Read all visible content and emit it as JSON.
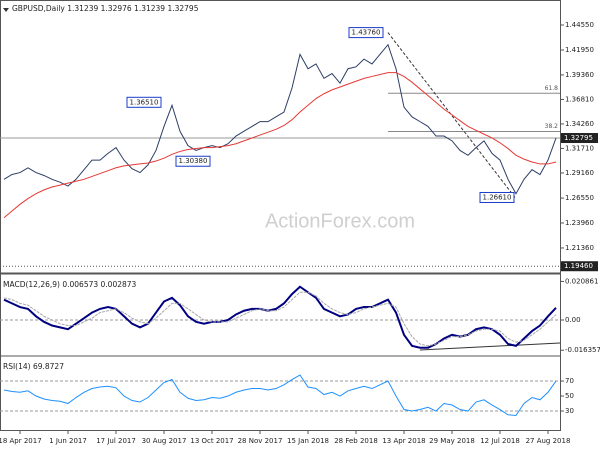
{
  "chart_data": [
    {
      "type": "line",
      "title": "GBPUSD,Daily  1.31239 1.32976 1.31239 1.32795",
      "categories": [
        null,
        null,
        "18 Apr 2017",
        null,
        null,
        null,
        null,
        null,
        "1 Jun 2017",
        null,
        null,
        null,
        null,
        null,
        "17 Jul 2017",
        null,
        null,
        null,
        null,
        null,
        "30 Aug 2017",
        null,
        null,
        null,
        null,
        null,
        "13 Oct 2017",
        null,
        null,
        null,
        null,
        null,
        "28 Nov 2017",
        null,
        null,
        null,
        null,
        null,
        "15 Jan 2018",
        null,
        null,
        null,
        null,
        null,
        "28 Feb 2018",
        null,
        null,
        null,
        null,
        null,
        "13 Apr 2018",
        null,
        null,
        null,
        null,
        null,
        "29 May 2018",
        null,
        null,
        null,
        null,
        null,
        "12 Jul 2018",
        null,
        null,
        null,
        null,
        null,
        "27 Aug 2018",
        null
      ],
      "series": [
        {
          "color": "#2c3e66",
          "values": [
            1.285,
            1.29,
            1.292,
            1.297,
            1.292,
            1.289,
            1.285,
            1.282,
            1.278,
            1.285,
            1.295,
            1.305,
            1.305,
            1.312,
            1.318,
            1.305,
            1.296,
            1.292,
            1.3,
            1.315,
            1.34,
            1.362,
            1.335,
            1.32,
            1.315,
            1.318,
            1.32,
            1.318,
            1.322,
            1.33,
            1.335,
            1.34,
            1.345,
            1.345,
            1.35,
            1.355,
            1.38,
            1.415,
            1.4,
            1.405,
            1.39,
            1.395,
            1.385,
            1.4,
            1.402,
            1.41,
            1.405,
            1.415,
            1.425,
            1.4,
            1.36,
            1.35,
            1.345,
            1.34,
            1.33,
            1.33,
            1.325,
            1.315,
            1.31,
            1.318,
            1.325,
            1.312,
            1.305,
            1.285,
            1.27,
            1.285,
            1.295,
            1.29,
            1.305,
            1.32795
          ]
        },
        {
          "color": "#e53935",
          "values": [
            1.245,
            1.252,
            1.259,
            1.265,
            1.27,
            1.274,
            1.277,
            1.279,
            1.281,
            1.283,
            1.285,
            1.288,
            1.291,
            1.294,
            1.297,
            1.299,
            1.3,
            1.301,
            1.302,
            1.304,
            1.307,
            1.311,
            1.314,
            1.316,
            1.317,
            1.318,
            1.318,
            1.319,
            1.32,
            1.322,
            1.325,
            1.328,
            1.331,
            1.334,
            1.337,
            1.341,
            1.347,
            1.355,
            1.362,
            1.369,
            1.374,
            1.378,
            1.381,
            1.384,
            1.387,
            1.39,
            1.392,
            1.394,
            1.396,
            1.396,
            1.392,
            1.386,
            1.379,
            1.372,
            1.365,
            1.358,
            1.352,
            1.346,
            1.34,
            1.336,
            1.332,
            1.328,
            1.323,
            1.317,
            1.31,
            1.306,
            1.303,
            1.301,
            1.301,
            1.303
          ]
        }
      ],
      "ylim": [
        1.1886,
        1.4715
      ],
      "yticks": [
        {
          "value": 1.4455,
          "label": "1.44550"
        },
        {
          "value": 1.4195,
          "label": "1.41950"
        },
        {
          "value": 1.3936,
          "label": "1.39360"
        },
        {
          "value": 1.3681,
          "label": "1.36810"
        },
        {
          "value": 1.3426,
          "label": "1.34260"
        },
        {
          "value": 1.3171,
          "label": "1.31710"
        },
        {
          "value": 1.2916,
          "label": "1.29160"
        },
        {
          "value": 1.2655,
          "label": "1.26550"
        },
        {
          "value": 1.2396,
          "label": "1.23960"
        },
        {
          "value": 1.2136,
          "label": "1.21360"
        }
      ],
      "price_markers": [
        {
          "value": 1.32795,
          "label": "1.32795"
        },
        {
          "value": 1.1946,
          "label": "1.19460"
        }
      ],
      "levels": [
        {
          "value": 1.3745,
          "label": "61.8"
        },
        {
          "value": 1.3347,
          "label": "38.2"
        }
      ],
      "annotations": [
        {
          "value": 1.4376,
          "label": "1.43760"
        },
        {
          "value": 1.3651,
          "label": "1.36510"
        },
        {
          "value": 1.3038,
          "label": "1.30380"
        },
        {
          "value": 1.2661,
          "label": "1.26610"
        }
      ],
      "watermark": "ActionForex.com"
    },
    {
      "type": "line",
      "title": "MACD(12,26,9) 0.006573 0.002873",
      "series": [
        {
          "color": "#000080",
          "values": [
            0.011,
            0.009,
            0.007,
            0.006,
            0.002,
            -0.001,
            -0.003,
            -0.004,
            -0.005,
            -0.002,
            0.001,
            0.004,
            0.006,
            0.007,
            0.006,
            0.002,
            -0.002,
            -0.004,
            -0.002,
            0.004,
            0.01,
            0.012,
            0.008,
            0.002,
            -0.001,
            -0.002,
            -0.001,
            -0.001,
            0,
            0.003,
            0.005,
            0.006,
            0.006,
            0.005,
            0.006,
            0.009,
            0.014,
            0.018,
            0.015,
            0.012,
            0.006,
            0.004,
            0.002,
            0.003,
            0.006,
            0.007,
            0.007,
            0.009,
            0.011,
            0.004,
            -0.008,
            -0.014,
            -0.015,
            -0.015,
            -0.013,
            -0.01,
            -0.008,
            -0.009,
            -0.008,
            -0.005,
            -0.004,
            -0.005,
            -0.008,
            -0.013,
            -0.014,
            -0.01,
            -0.006,
            -0.003,
            0.002,
            0.0066
          ]
        },
        {
          "color": "#a8a8a8",
          "values": [
            0.012,
            0.011,
            0.009,
            0.008,
            0.005,
            0.002,
            0,
            -0.002,
            -0.003,
            -0.003,
            -0.001,
            0.001,
            0.004,
            0.005,
            0.006,
            0.004,
            0.001,
            -0.001,
            -0.002,
            0.001,
            0.005,
            0.009,
            0.009,
            0.006,
            0.003,
            0,
            -0.001,
            -0.001,
            -0.001,
            0.001,
            0.003,
            0.005,
            0.006,
            0.005,
            0.005,
            0.007,
            0.011,
            0.015,
            0.015,
            0.013,
            0.009,
            0.006,
            0.004,
            0.003,
            0.004,
            0.006,
            0.007,
            0.008,
            0.009,
            0.007,
            -0.002,
            -0.009,
            -0.013,
            -0.014,
            -0.013,
            -0.011,
            -0.009,
            -0.009,
            -0.008,
            -0.006,
            -0.005,
            -0.005,
            -0.006,
            -0.01,
            -0.012,
            -0.011,
            -0.008,
            -0.005,
            -0.001,
            0.0029
          ]
        }
      ],
      "ylim": [
        -0.0184,
        0.0238
      ],
      "yticks": [
        0.020861,
        {
          "value": 0,
          "label": "0.00"
        },
        -0.016357
      ]
    },
    {
      "type": "line",
      "title": "RSI(14) 69.8727",
      "series": [
        {
          "color": "#1e90ff",
          "values": [
            58,
            56,
            55,
            57,
            50,
            46,
            44,
            43,
            40,
            48,
            55,
            60,
            62,
            63,
            61,
            50,
            44,
            42,
            48,
            58,
            68,
            72,
            55,
            47,
            44,
            45,
            48,
            47,
            50,
            55,
            58,
            60,
            60,
            58,
            60,
            65,
            72,
            78,
            62,
            60,
            52,
            55,
            50,
            57,
            60,
            63,
            60,
            65,
            70,
            50,
            32,
            30,
            32,
            35,
            30,
            40,
            38,
            32,
            30,
            42,
            45,
            38,
            32,
            25,
            24,
            40,
            48,
            45,
            55,
            70
          ]
        }
      ],
      "ylim": [
        4.7,
        100.7
      ],
      "yticks": [
        70,
        50,
        30
      ]
    }
  ]
}
